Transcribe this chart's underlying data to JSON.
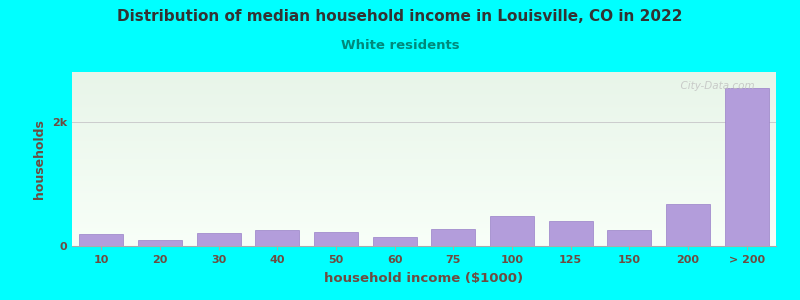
{
  "title": "Distribution of median household income in Louisville, CO in 2022",
  "subtitle": "White residents",
  "xlabel": "household income ($1000)",
  "ylabel": "households",
  "background_color": "#00FFFF",
  "bar_color": "#b39ddb",
  "bar_edge_color": "#9980c8",
  "title_color": "#333333",
  "subtitle_color": "#00897b",
  "axis_label_color": "#6d4c41",
  "tick_label_color": "#6d4c41",
  "categories": [
    "10",
    "20",
    "30",
    "40",
    "50",
    "60",
    "75",
    "100",
    "125",
    "150",
    "200",
    "> 200"
  ],
  "values": [
    190,
    90,
    210,
    250,
    220,
    140,
    280,
    490,
    410,
    250,
    680,
    2550
  ],
  "ytick_labels": [
    "0",
    "2k"
  ],
  "ytick_values": [
    0,
    2000
  ],
  "ylim": [
    0,
    2800
  ],
  "watermark": "  City-Data.com",
  "figwidth": 8.0,
  "figheight": 3.0,
  "dpi": 100
}
